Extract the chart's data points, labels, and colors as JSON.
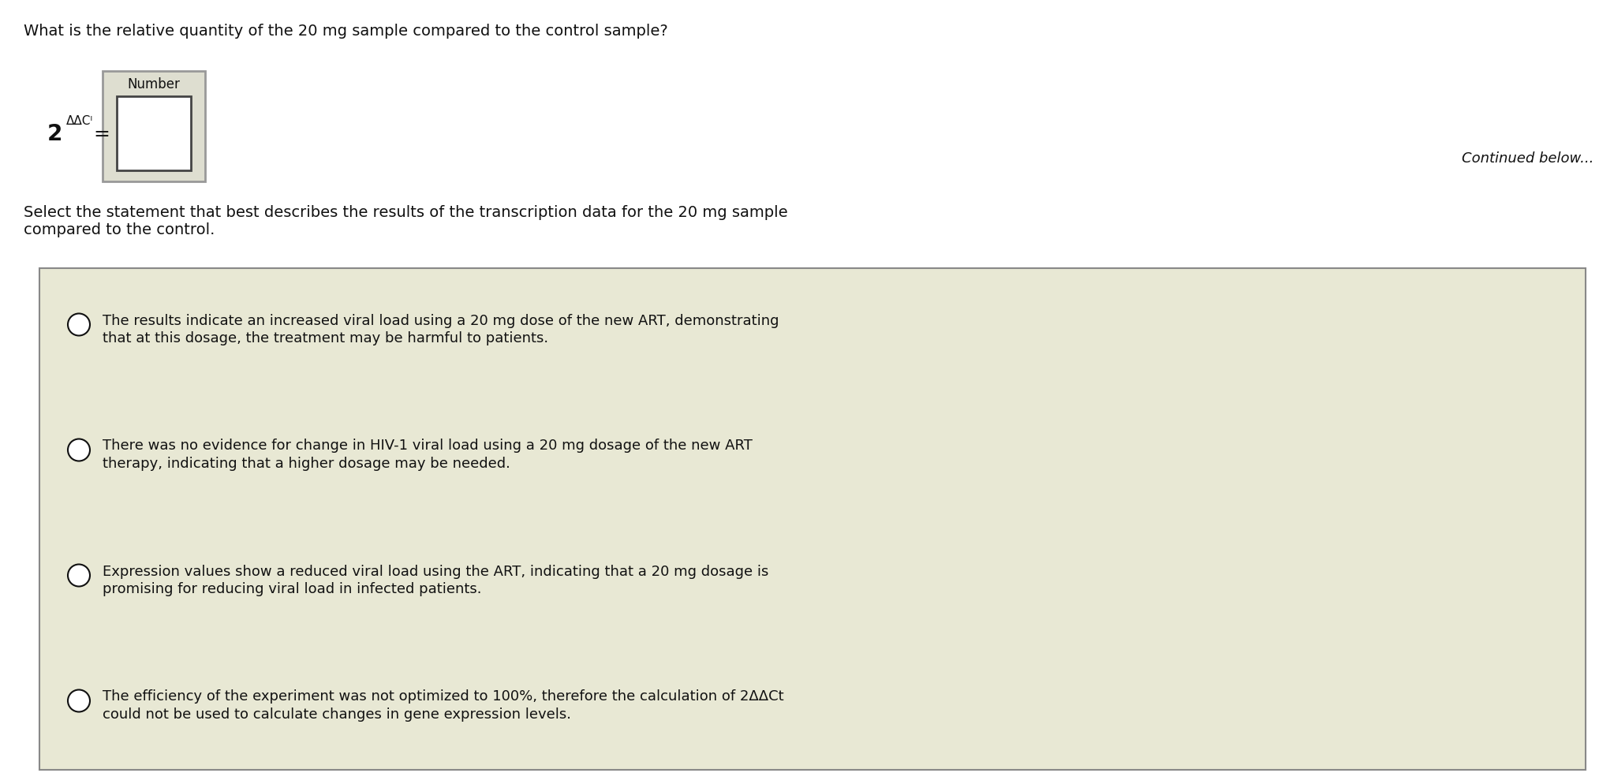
{
  "background_color": "#ffffff",
  "question1": "What is the relative quantity of the 20 mg sample compared to the control sample?",
  "number_label": "Number",
  "superscript_text": "ΔΔCᴵ",
  "continued_text": "Continued below...",
  "question2_line1": "Select the statement that best describes the results of the transcription data for the 20 mg sample",
  "question2_line2": "compared to the control.",
  "options": [
    "The results indicate an increased viral load using a 20 mg dose of the new ART, demonstrating\nthat at this dosage, the treatment may be harmful to patients.",
    "There was no evidence for change in HIV-1 viral load using a 20 mg dosage of the new ART\ntherapy, indicating that a higher dosage may be needed.",
    "Expression values show a reduced viral load using the ART, indicating that a 20 mg dosage is\npromising for reducing viral load in infected patients.",
    "The efficiency of the experiment was not optimized to 100%, therefore the calculation of 2ΔΔCt\ncould not be used to calculate changes in gene expression levels."
  ],
  "box_bg_color": "#e8e8d4",
  "box_border_color": "#888888",
  "input_box_color": "#ffffff",
  "input_box_border": "#444444",
  "outer_box_border": "#999999",
  "outer_box_bg": "#deded0",
  "text_color": "#111111",
  "font_size_q1": 14,
  "font_size_options": 13,
  "font_size_number_label": 12,
  "font_size_formula_base": 18,
  "font_size_superscript": 11,
  "font_size_continued": 13
}
